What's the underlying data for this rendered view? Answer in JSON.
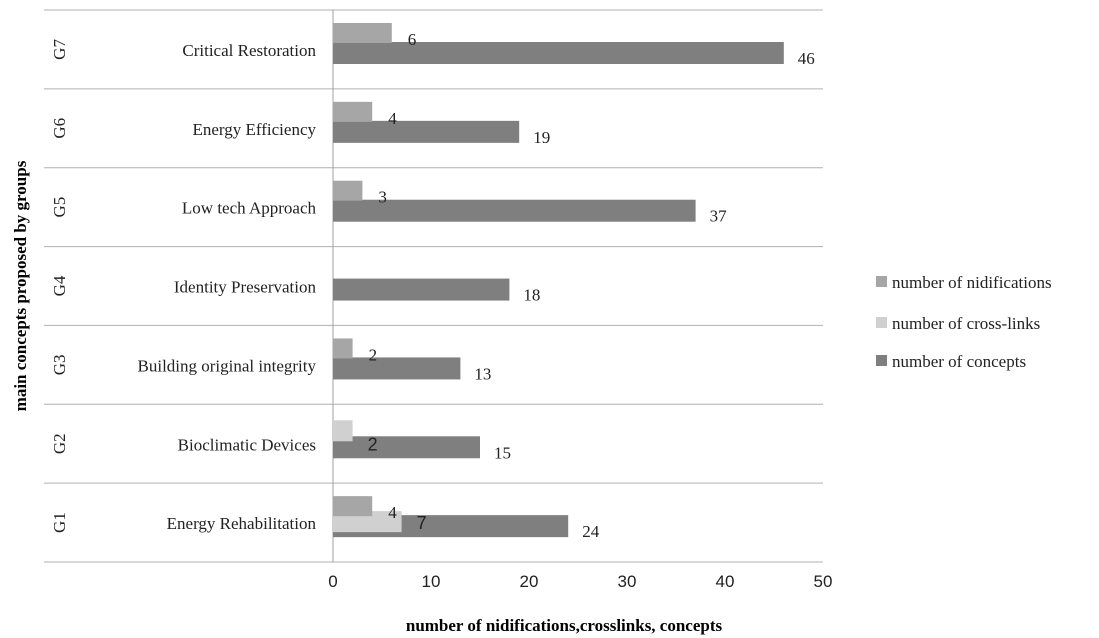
{
  "chart_data": {
    "type": "bar",
    "orientation": "horizontal",
    "title": "",
    "xlabel": "number of nidifications,crosslinks, concepts",
    "ylabel": "main concepts proposed by groups",
    "xlim": [
      0,
      50
    ],
    "xticks": [
      0,
      10,
      20,
      30,
      40,
      50
    ],
    "grid": false,
    "legend_position": "right",
    "groups": [
      "G7",
      "G6",
      "G5",
      "G4",
      "G3",
      "G2",
      "G1"
    ],
    "categories": [
      "Critical Restoration",
      "Energy Efficiency",
      "Low tech Approach",
      "Identity Preservation",
      "Building original integrity",
      "Bioclimatic Devices",
      "Energy Rehabilitation"
    ],
    "series": [
      {
        "name": "number of nidifications",
        "color": "#a6a6a6",
        "values": [
          6,
          4,
          3,
          null,
          2,
          null,
          4
        ]
      },
      {
        "name": "number of cross-links",
        "color": "#d0d0d0",
        "values": [
          null,
          null,
          null,
          null,
          null,
          2,
          7
        ]
      },
      {
        "name": "number of concepts",
        "color": "#7f7f7f",
        "values": [
          46,
          19,
          37,
          18,
          13,
          15,
          24
        ]
      }
    ]
  }
}
